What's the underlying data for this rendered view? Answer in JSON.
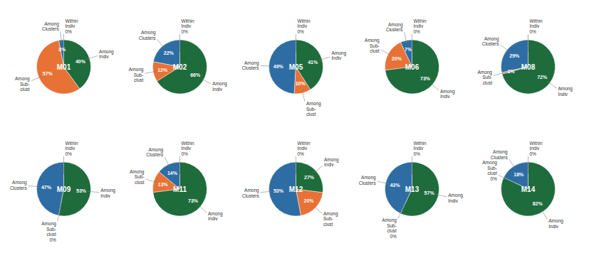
{
  "chart_data": [
    {
      "type": "pie",
      "title": "M01",
      "categories": [
        "Within\nIndiv",
        "Among\nClusters",
        "Among\nSub-\nclust",
        "Among\nIndiv"
      ],
      "values": [
        0,
        3,
        57,
        40
      ],
      "value_labels": [
        "0%",
        "3%",
        "57%",
        "40%"
      ],
      "colors": [
        "#d4e157",
        "#2e6da4",
        "#e87136",
        "#1e6b3c"
      ],
      "data_labels": true
    },
    {
      "type": "pie",
      "title": "M02",
      "categories": [
        "Within\nIndiv",
        "Among\nClusters",
        "Among\nSub-\nclust",
        "Among\nIndiv"
      ],
      "values": [
        0,
        22,
        12,
        66
      ],
      "value_labels": [
        "0%",
        "22%",
        "12%",
        "66%"
      ],
      "colors": [
        "#d4e157",
        "#2e6da4",
        "#e87136",
        "#1e6b3c"
      ],
      "data_labels": true
    },
    {
      "type": "pie",
      "title": "M05",
      "categories": [
        "Within\nIndiv",
        "Among\nClusters",
        "Among\nSub-\nclust",
        "Among\nIndiv"
      ],
      "values": [
        0,
        49,
        10,
        41
      ],
      "value_labels": [
        "0%",
        "49%",
        "10%",
        "41%"
      ],
      "colors": [
        "#d4e157",
        "#2e6da4",
        "#e87136",
        "#1e6b3c"
      ],
      "data_labels": true
    },
    {
      "type": "pie",
      "title": "M06",
      "categories": [
        "Within\nIndiv",
        "Among\nClusters",
        "Among\nSub-\nclust",
        "Among\nIndiv"
      ],
      "values": [
        0,
        7,
        20,
        73
      ],
      "value_labels": [
        "0%",
        "7%",
        "20%",
        "73%"
      ],
      "colors": [
        "#d4e157",
        "#2e6da4",
        "#e87136",
        "#1e6b3c"
      ],
      "data_labels": true
    },
    {
      "type": "pie",
      "title": "M08",
      "categories": [
        "Within\nIndiv",
        "Among\nClusters",
        "Among\nSub-\nclust",
        "Among\nIndiv"
      ],
      "values": [
        0,
        29,
        1,
        72
      ],
      "value_labels": [
        "0%",
        "29%",
        "1%",
        "72%"
      ],
      "colors": [
        "#d4e157",
        "#2e6da4",
        "#e87136",
        "#1e6b3c"
      ],
      "data_labels": true
    },
    {
      "type": "pie",
      "title": "M09",
      "categories": [
        "Within\nIndiv",
        "Among\nClusters",
        "Among\nSub-\nclust",
        "Among\nIndiv"
      ],
      "values": [
        0,
        47,
        0,
        53
      ],
      "value_labels": [
        "0%",
        "47%",
        "0%",
        "53%"
      ],
      "colors": [
        "#d4e157",
        "#2e6da4",
        "#e87136",
        "#1e6b3c"
      ],
      "data_labels": true
    },
    {
      "type": "pie",
      "title": "M11",
      "categories": [
        "Within\nIndiv",
        "Among\nClusters",
        "Among\nSub-\nclust",
        "Among\nIndiv"
      ],
      "values": [
        0,
        14,
        13,
        73
      ],
      "value_labels": [
        "0%",
        "14%",
        "13%",
        "73%"
      ],
      "colors": [
        "#d4e157",
        "#2e6da4",
        "#e87136",
        "#1e6b3c"
      ],
      "data_labels": true
    },
    {
      "type": "pie",
      "title": "M12",
      "categories": [
        "Within\nIndiv",
        "Among\nClusters",
        "Among\nSub-\nclust",
        "Among\nIndiv"
      ],
      "values": [
        0,
        53,
        20,
        27
      ],
      "value_labels": [
        "0%",
        "53%",
        "20%",
        "27%"
      ],
      "colors": [
        "#d4e157",
        "#2e6da4",
        "#e87136",
        "#1e6b3c"
      ],
      "data_labels": true
    },
    {
      "type": "pie",
      "title": "M13",
      "categories": [
        "Within\nIndiv",
        "Among\nClusters",
        "Among\nSub-\nclust",
        "Among\nIndiv"
      ],
      "values": [
        0,
        43,
        0,
        57
      ],
      "value_labels": [
        "0%",
        "43%",
        "0%",
        "57%"
      ],
      "colors": [
        "#d4e157",
        "#2e6da4",
        "#e87136",
        "#1e6b3c"
      ],
      "data_labels": true
    },
    {
      "type": "pie",
      "title": "M14",
      "categories": [
        "Within\nIndiv",
        "Among\nClusters",
        "Among\nSub-\nclust",
        "Among\nIndiv"
      ],
      "values": [
        0,
        18,
        0,
        82
      ],
      "value_labels": [
        "0%",
        "18%",
        "0%",
        "82%"
      ],
      "colors": [
        "#d4e157",
        "#2e6da4",
        "#e87136",
        "#1e6b3c"
      ],
      "data_labels": true
    }
  ]
}
